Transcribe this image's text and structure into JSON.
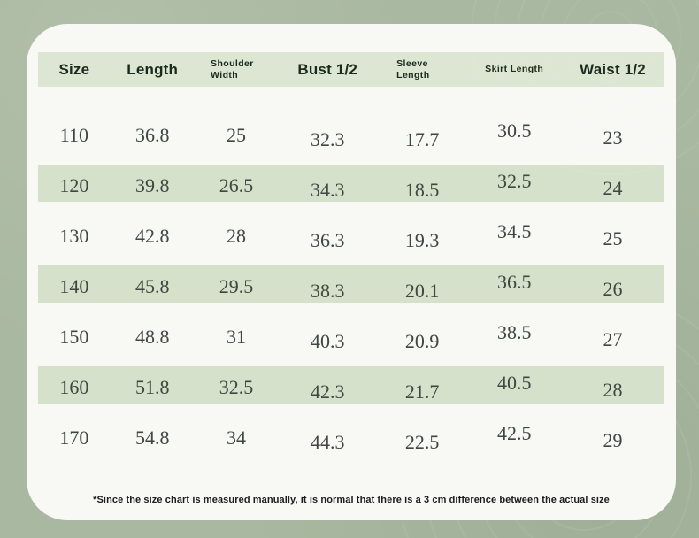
{
  "colors": {
    "page_background": "#a9b8a0",
    "card_background": "#f8f8f5",
    "header_band": "#dce6d3",
    "row_stripe": "#d6e1cb",
    "header_text": "#1b2a1e",
    "data_text": "#3f4741"
  },
  "chart_data": {
    "type": "table",
    "title": "",
    "columns": [
      "Size",
      "Length",
      "Shoulder Width",
      "Bust 1/2",
      "Sleeve Length",
      "Skirt Length",
      "Waist 1/2"
    ],
    "rows": [
      [
        "110",
        "36.8",
        "25",
        "32.3",
        "17.7",
        "30.5",
        "23"
      ],
      [
        "120",
        "39.8",
        "26.5",
        "34.3",
        "18.5",
        "32.5",
        "24"
      ],
      [
        "130",
        "42.8",
        "28",
        "36.3",
        "19.3",
        "34.5",
        "25"
      ],
      [
        "140",
        "45.8",
        "29.5",
        "38.3",
        "20.1",
        "36.5",
        "26"
      ],
      [
        "150",
        "48.8",
        "31",
        "40.3",
        "20.9",
        "38.5",
        "27"
      ],
      [
        "160",
        "51.8",
        "32.5",
        "42.3",
        "21.7",
        "40.5",
        "28"
      ],
      [
        "170",
        "54.8",
        "34",
        "44.3",
        "22.5",
        "42.5",
        "29"
      ]
    ],
    "layout": {
      "striped_row_indices": [
        1,
        3,
        5
      ],
      "legend": "none",
      "grid": "off"
    }
  },
  "footnote": {
    "text": "*Since the size chart is measured manually, it is normal that there is a 3 cm difference between the actual size"
  }
}
